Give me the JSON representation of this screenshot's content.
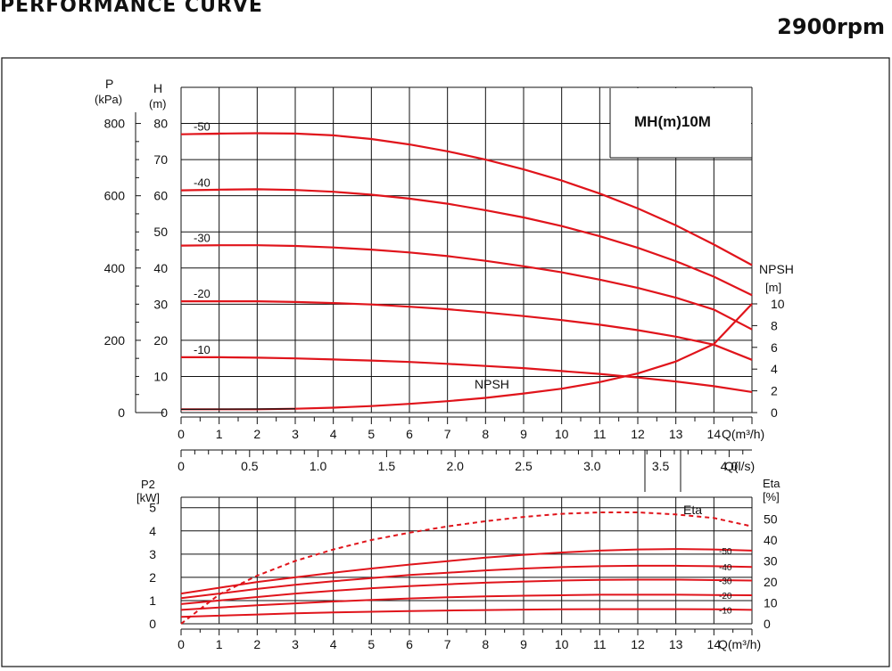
{
  "header": {
    "title": "PERFORMANCE CURVE",
    "speed": "2900rpm"
  },
  "chart_data": [
    {
      "type": "line",
      "model": "MH(m)10M",
      "axes": {
        "x": {
          "label": "Q(m³/h)",
          "range": [
            0,
            15
          ],
          "ticks": [
            "0",
            "1",
            "2",
            "3",
            "4",
            "5",
            "6",
            "7",
            "8",
            "9",
            "10",
            "11",
            "12",
            "13",
            "14"
          ]
        },
        "x2": {
          "label": "Q(l/s)",
          "range": [
            0,
            4.17
          ],
          "ticks": [
            "0",
            "0.5",
            "1.0",
            "1.5",
            "2.0",
            "2.5",
            "3.0",
            "3.5",
            "4.0"
          ]
        },
        "y_left_H": {
          "label_top": "H",
          "label_unit": "(m)",
          "range": [
            0,
            90
          ],
          "ticks": [
            "0",
            "10",
            "20",
            "30",
            "40",
            "50",
            "60",
            "70",
            "80"
          ]
        },
        "y_left_P": {
          "label_top": "P",
          "label_unit": "(kPa)",
          "range": [
            0,
            900
          ],
          "ticks": [
            "0",
            "200",
            "400",
            "600",
            "800"
          ]
        },
        "y_right_NPSH": {
          "label_top": "NPSH",
          "label_unit": "[m]",
          "range": [
            0,
            10
          ],
          "ticks": [
            "0",
            "2",
            "4",
            "6",
            "8",
            "10"
          ]
        }
      },
      "grid": true,
      "series": [
        {
          "name": "-50",
          "x": [
            0,
            1,
            2,
            3,
            4,
            5,
            6,
            7,
            8,
            9,
            10,
            11,
            12,
            13,
            14,
            15
          ],
          "y": [
            77,
            77.2,
            77.3,
            77.2,
            76.7,
            75.7,
            74.2,
            72.3,
            70,
            67.3,
            64.2,
            60.6,
            56.5,
            51.8,
            46.5,
            40.8
          ]
        },
        {
          "name": "-40",
          "x": [
            0,
            1,
            2,
            3,
            4,
            5,
            6,
            7,
            8,
            9,
            10,
            11,
            12,
            13,
            14,
            15
          ],
          "y": [
            61.5,
            61.7,
            61.8,
            61.6,
            61.1,
            60.3,
            59.2,
            57.8,
            56,
            54,
            51.6,
            48.8,
            45.6,
            41.9,
            37.6,
            32.5
          ]
        },
        {
          "name": "-30",
          "x": [
            0,
            1,
            2,
            3,
            4,
            5,
            6,
            7,
            8,
            9,
            10,
            11,
            12,
            13,
            14,
            15
          ],
          "y": [
            46.2,
            46.3,
            46.3,
            46.1,
            45.7,
            45.1,
            44.3,
            43.3,
            42,
            40.5,
            38.8,
            36.8,
            34.5,
            31.8,
            28.5,
            23
          ]
        },
        {
          "name": "-20",
          "x": [
            0,
            1,
            2,
            3,
            4,
            5,
            6,
            7,
            8,
            9,
            10,
            11,
            12,
            13,
            14,
            15
          ],
          "y": [
            30.8,
            30.8,
            30.8,
            30.6,
            30.3,
            29.9,
            29.3,
            28.6,
            27.7,
            26.7,
            25.6,
            24.3,
            22.8,
            21,
            18.8,
            14.6
          ]
        },
        {
          "name": "-10",
          "x": [
            0,
            1,
            2,
            3,
            4,
            5,
            6,
            7,
            8,
            9,
            10,
            11,
            12,
            13,
            14,
            15
          ],
          "y": [
            15.3,
            15.3,
            15.2,
            15.0,
            14.7,
            14.4,
            14.0,
            13.5,
            12.9,
            12.3,
            11.5,
            10.7,
            9.7,
            8.6,
            7.3,
            5.7
          ]
        },
        {
          "name": "NPSH",
          "unit": "m",
          "x": [
            0,
            1,
            2,
            3,
            4,
            5,
            6,
            7,
            8,
            9,
            10,
            11,
            12,
            13,
            14,
            15
          ],
          "y": [
            0.3,
            0.3,
            0.3,
            0.35,
            0.45,
            0.6,
            0.8,
            1.05,
            1.35,
            1.75,
            2.2,
            2.8,
            3.6,
            4.7,
            6.3,
            10
          ]
        }
      ]
    },
    {
      "type": "line",
      "axes": {
        "x": {
          "label": "Q(m³/h)",
          "range": [
            0,
            15
          ],
          "ticks": [
            "0",
            "1",
            "2",
            "3",
            "4",
            "5",
            "6",
            "7",
            "8",
            "9",
            "10",
            "11",
            "12",
            "13",
            "14"
          ]
        },
        "y_left": {
          "label_top": "P2",
          "label_unit": "[kW]",
          "range": [
            0,
            5.5
          ],
          "ticks": [
            "0",
            "1",
            "2",
            "3",
            "4",
            "5"
          ]
        },
        "y_right": {
          "label_top": "Eta",
          "label_unit": "[%]",
          "range": [
            0,
            55
          ],
          "ticks": [
            "0",
            "10",
            "20",
            "30",
            "40",
            "50"
          ]
        }
      },
      "grid": true,
      "series": [
        {
          "name": "-50",
          "x": [
            0,
            1,
            2,
            3,
            4,
            5,
            6,
            7,
            8,
            9,
            10,
            11,
            12,
            13,
            14,
            15
          ],
          "y": [
            1.3,
            1.55,
            1.8,
            2.0,
            2.2,
            2.38,
            2.55,
            2.7,
            2.85,
            2.97,
            3.07,
            3.15,
            3.2,
            3.22,
            3.2,
            3.15
          ]
        },
        {
          "name": "-40",
          "x": [
            0,
            1,
            2,
            3,
            4,
            5,
            6,
            7,
            8,
            9,
            10,
            11,
            12,
            13,
            14,
            15
          ],
          "y": [
            1.1,
            1.3,
            1.5,
            1.68,
            1.83,
            1.97,
            2.1,
            2.2,
            2.3,
            2.38,
            2.44,
            2.48,
            2.5,
            2.5,
            2.48,
            2.45
          ]
        },
        {
          "name": "-30",
          "x": [
            0,
            1,
            2,
            3,
            4,
            5,
            6,
            7,
            8,
            9,
            10,
            11,
            12,
            13,
            14,
            15
          ],
          "y": [
            0.85,
            1.0,
            1.15,
            1.3,
            1.42,
            1.53,
            1.62,
            1.7,
            1.77,
            1.82,
            1.86,
            1.89,
            1.9,
            1.9,
            1.88,
            1.86
          ]
        },
        {
          "name": "-20",
          "x": [
            0,
            1,
            2,
            3,
            4,
            5,
            6,
            7,
            8,
            9,
            10,
            11,
            12,
            13,
            14,
            15
          ],
          "y": [
            0.6,
            0.7,
            0.8,
            0.88,
            0.96,
            1.03,
            1.09,
            1.14,
            1.18,
            1.21,
            1.23,
            1.25,
            1.25,
            1.25,
            1.24,
            1.23
          ]
        },
        {
          "name": "-10",
          "x": [
            0,
            1,
            2,
            3,
            4,
            5,
            6,
            7,
            8,
            9,
            10,
            11,
            12,
            13,
            14,
            15
          ],
          "y": [
            0.3,
            0.35,
            0.4,
            0.45,
            0.49,
            0.52,
            0.55,
            0.57,
            0.59,
            0.61,
            0.62,
            0.63,
            0.63,
            0.63,
            0.62,
            0.6
          ]
        },
        {
          "name": "Eta",
          "unit": "%",
          "style": "dashed",
          "x": [
            0,
            1,
            2,
            3,
            4,
            5,
            6,
            7,
            8,
            9,
            10,
            11,
            12,
            13,
            14,
            15
          ],
          "y": [
            0,
            14,
            23,
            30,
            35.5,
            40,
            43.5,
            46.5,
            49,
            51,
            52.5,
            53.2,
            53.2,
            52.2,
            50.5,
            46.5
          ]
        }
      ]
    }
  ]
}
